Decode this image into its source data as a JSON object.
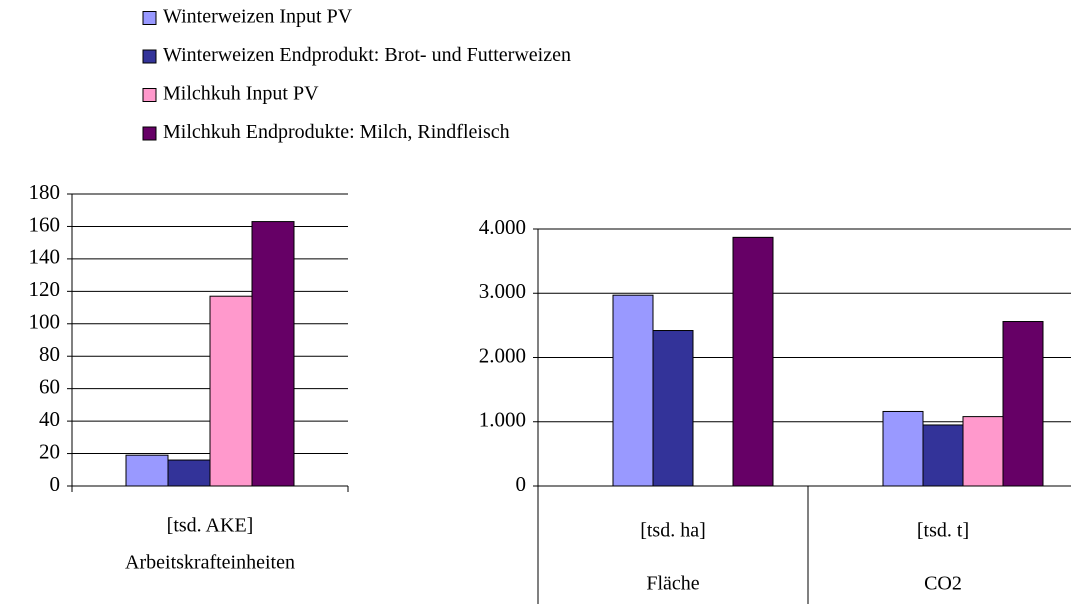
{
  "chart_data": [
    {
      "type": "bar",
      "categories": [
        "[tsd. AKE]"
      ],
      "group_labels": [
        "Arbeitskrafteinheiten"
      ],
      "series": [
        {
          "name": "Winterweizen Input PV",
          "color": "#9999ff",
          "values": [
            19
          ]
        },
        {
          "name": "Winterweizen Endprodukt: Brot- und Futterweizen",
          "color": "#333399",
          "values": [
            16
          ]
        },
        {
          "name": "Milchkuh Input PV",
          "color": "#ff99cc",
          "values": [
            117
          ]
        },
        {
          "name": "Milchkuh Endprodukte: Milch, Rindfleisch",
          "color": "#660066",
          "values": [
            163
          ]
        }
      ],
      "ylim": [
        0,
        180
      ],
      "yticks": [
        0,
        20,
        40,
        60,
        80,
        100,
        120,
        140,
        160,
        180
      ],
      "grid": true,
      "legend": "top"
    },
    {
      "type": "bar",
      "categories": [
        "[tsd. ha]",
        "[tsd. t]"
      ],
      "group_labels": [
        "Fläche",
        "CO2"
      ],
      "series": [
        {
          "color": "#9999ff",
          "values": [
            2970,
            1160
          ]
        },
        {
          "color": "#333399",
          "values": [
            2420,
            950
          ]
        },
        {
          "color": "#ff99cc",
          "values": [
            null,
            1080
          ]
        },
        {
          "color": "#660066",
          "values": [
            3870,
            2560
          ]
        }
      ],
      "ylim": [
        0,
        4000
      ],
      "yticks": [
        0,
        {
          "value": 1000,
          "label": "1.000"
        },
        {
          "value": 2000,
          "label": "2.000"
        },
        {
          "value": 3000,
          "label": "3.000"
        },
        {
          "value": 4000,
          "label": "4.000"
        }
      ],
      "grid": true
    }
  ]
}
